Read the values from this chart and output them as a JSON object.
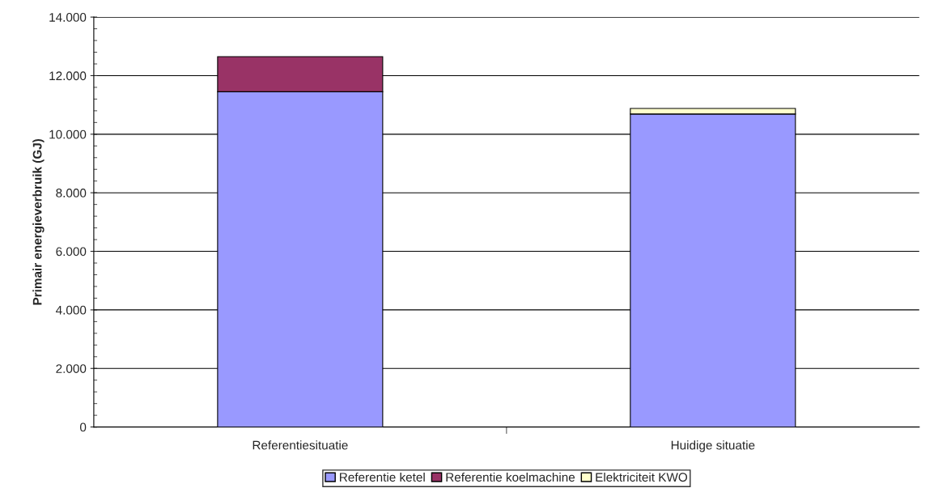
{
  "chart_data": {
    "type": "bar",
    "stacked": true,
    "ylabel": "Primair energieverbruik (GJ)",
    "categories": [
      "Referentiesituatie",
      "Huidige situatie"
    ],
    "series": [
      {
        "name": "Referentie ketel",
        "color": "#9999ff",
        "values": [
          11450,
          10690
        ]
      },
      {
        "name": "Referentie koelmachine",
        "color": "#993366",
        "values": [
          1200,
          0
        ]
      },
      {
        "name": "Elektriciteit KWO",
        "color": "#ffffcc",
        "values": [
          0,
          190
        ]
      }
    ],
    "ylim": [
      0,
      14000
    ],
    "yticks": [
      {
        "value": 0,
        "label": "0"
      },
      {
        "value": 2000,
        "label": "2.000"
      },
      {
        "value": 4000,
        "label": "4.000"
      },
      {
        "value": 6000,
        "label": "6.000"
      },
      {
        "value": 8000,
        "label": "8.000"
      },
      {
        "value": 10000,
        "label": "10.000"
      },
      {
        "value": 12000,
        "label": "12.000"
      },
      {
        "value": 14000,
        "label": "14.000"
      }
    ],
    "grid": "y",
    "legend": "bottom"
  }
}
